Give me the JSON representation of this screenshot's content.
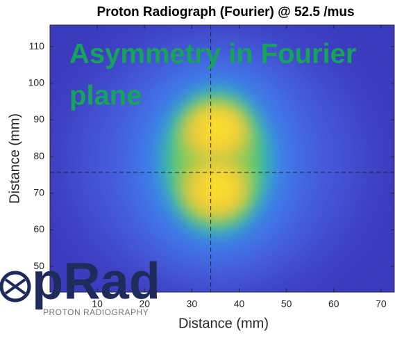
{
  "chart_data": {
    "type": "image",
    "title": "Proton Radiograph (Fourier) @ 52.5 /mus",
    "xlabel": "Distance (mm)",
    "ylabel": "Distance (mm)",
    "xlim": [
      0,
      72.8
    ],
    "ylim": [
      43,
      115.9
    ],
    "xticks": [
      10,
      20,
      30,
      40,
      50,
      60,
      70
    ],
    "yticks": [
      50,
      60,
      70,
      80,
      90,
      100,
      110
    ],
    "crosshair": {
      "x": 34,
      "y": 75.7
    },
    "annotation": [
      "Asymmetry in Fourier",
      "plane"
    ],
    "logo": {
      "name": "pRad",
      "subtitle": "PROTON RADIOGRAPHY"
    }
  }
}
